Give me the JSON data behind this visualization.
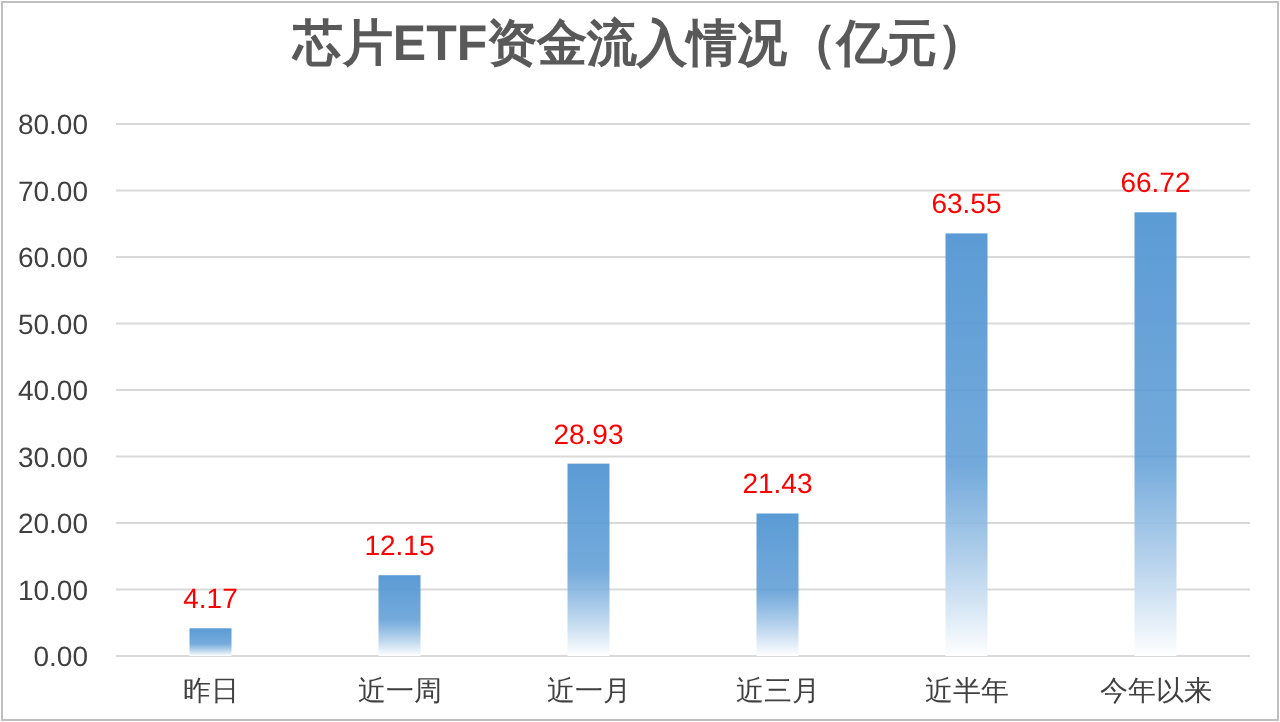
{
  "chart_data": {
    "type": "bar",
    "title": "芯片ETF资金流入情况（亿元）",
    "categories": [
      "昨日",
      "近一周",
      "近一月",
      "近三月",
      "近半年",
      "今年以来"
    ],
    "values": [
      4.17,
      12.15,
      28.93,
      21.43,
      63.55,
      66.72
    ],
    "color": "#5b9bd5",
    "ylim": [
      0,
      80
    ],
    "yticks": [
      {
        "value": 0,
        "label": "0.00"
      },
      {
        "value": 10,
        "label": "10.00"
      },
      {
        "value": 20,
        "label": "20.00"
      },
      {
        "value": 30,
        "label": "30.00"
      },
      {
        "value": 40,
        "label": "40.00"
      },
      {
        "value": 50,
        "label": "50.00"
      },
      {
        "value": 60,
        "label": "60.00"
      },
      {
        "value": 70,
        "label": "70.00"
      },
      {
        "value": 80,
        "label": "80.00"
      }
    ],
    "grid": "y",
    "data_labels": true
  }
}
